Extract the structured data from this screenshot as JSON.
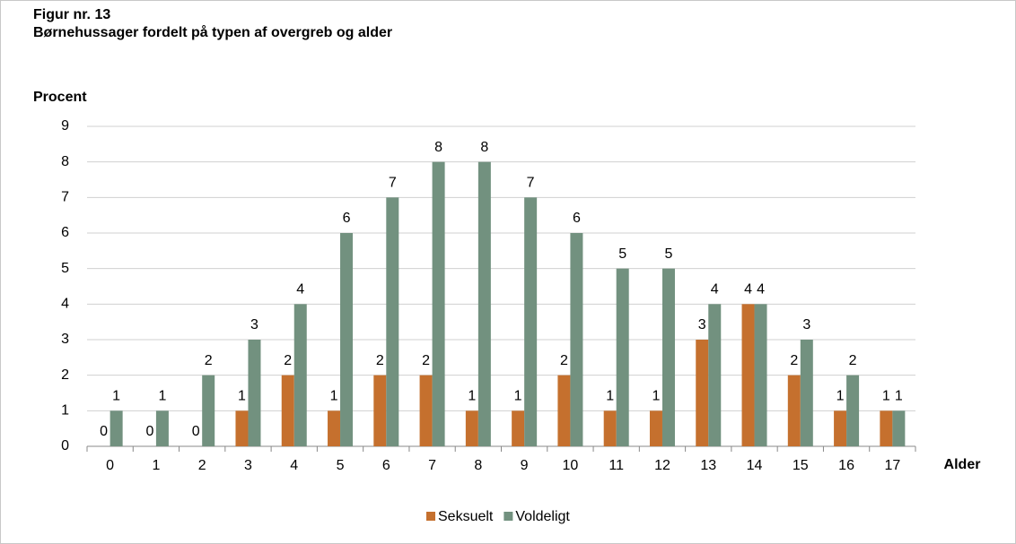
{
  "chart_data": {
    "type": "bar",
    "title": "Figur nr. 13",
    "subtitle": "Børnehussager fordelt på typen af overgreb og alder",
    "y_label": "Procent",
    "x_label": "Alder",
    "categories": [
      "0",
      "1",
      "2",
      "3",
      "4",
      "5",
      "6",
      "7",
      "8",
      "9",
      "10",
      "11",
      "12",
      "13",
      "14",
      "15",
      "16",
      "17"
    ],
    "series": [
      {
        "name": "Seksuelt",
        "color": "#c5702e",
        "values": [
          0,
          0,
          0,
          1,
          2,
          1,
          2,
          2,
          1,
          1,
          2,
          1,
          1,
          3,
          4,
          2,
          1,
          1
        ]
      },
      {
        "name": "Voldeligt",
        "color": "#72917f",
        "values": [
          1,
          1,
          2,
          3,
          4,
          6,
          7,
          8,
          8,
          7,
          6,
          5,
          5,
          4,
          4,
          3,
          2,
          1
        ]
      }
    ],
    "ylim": [
      0,
      9
    ],
    "yticks": [
      0,
      1,
      2,
      3,
      4,
      5,
      6,
      7,
      8,
      9
    ],
    "grid": true,
    "legend": "bottom"
  }
}
